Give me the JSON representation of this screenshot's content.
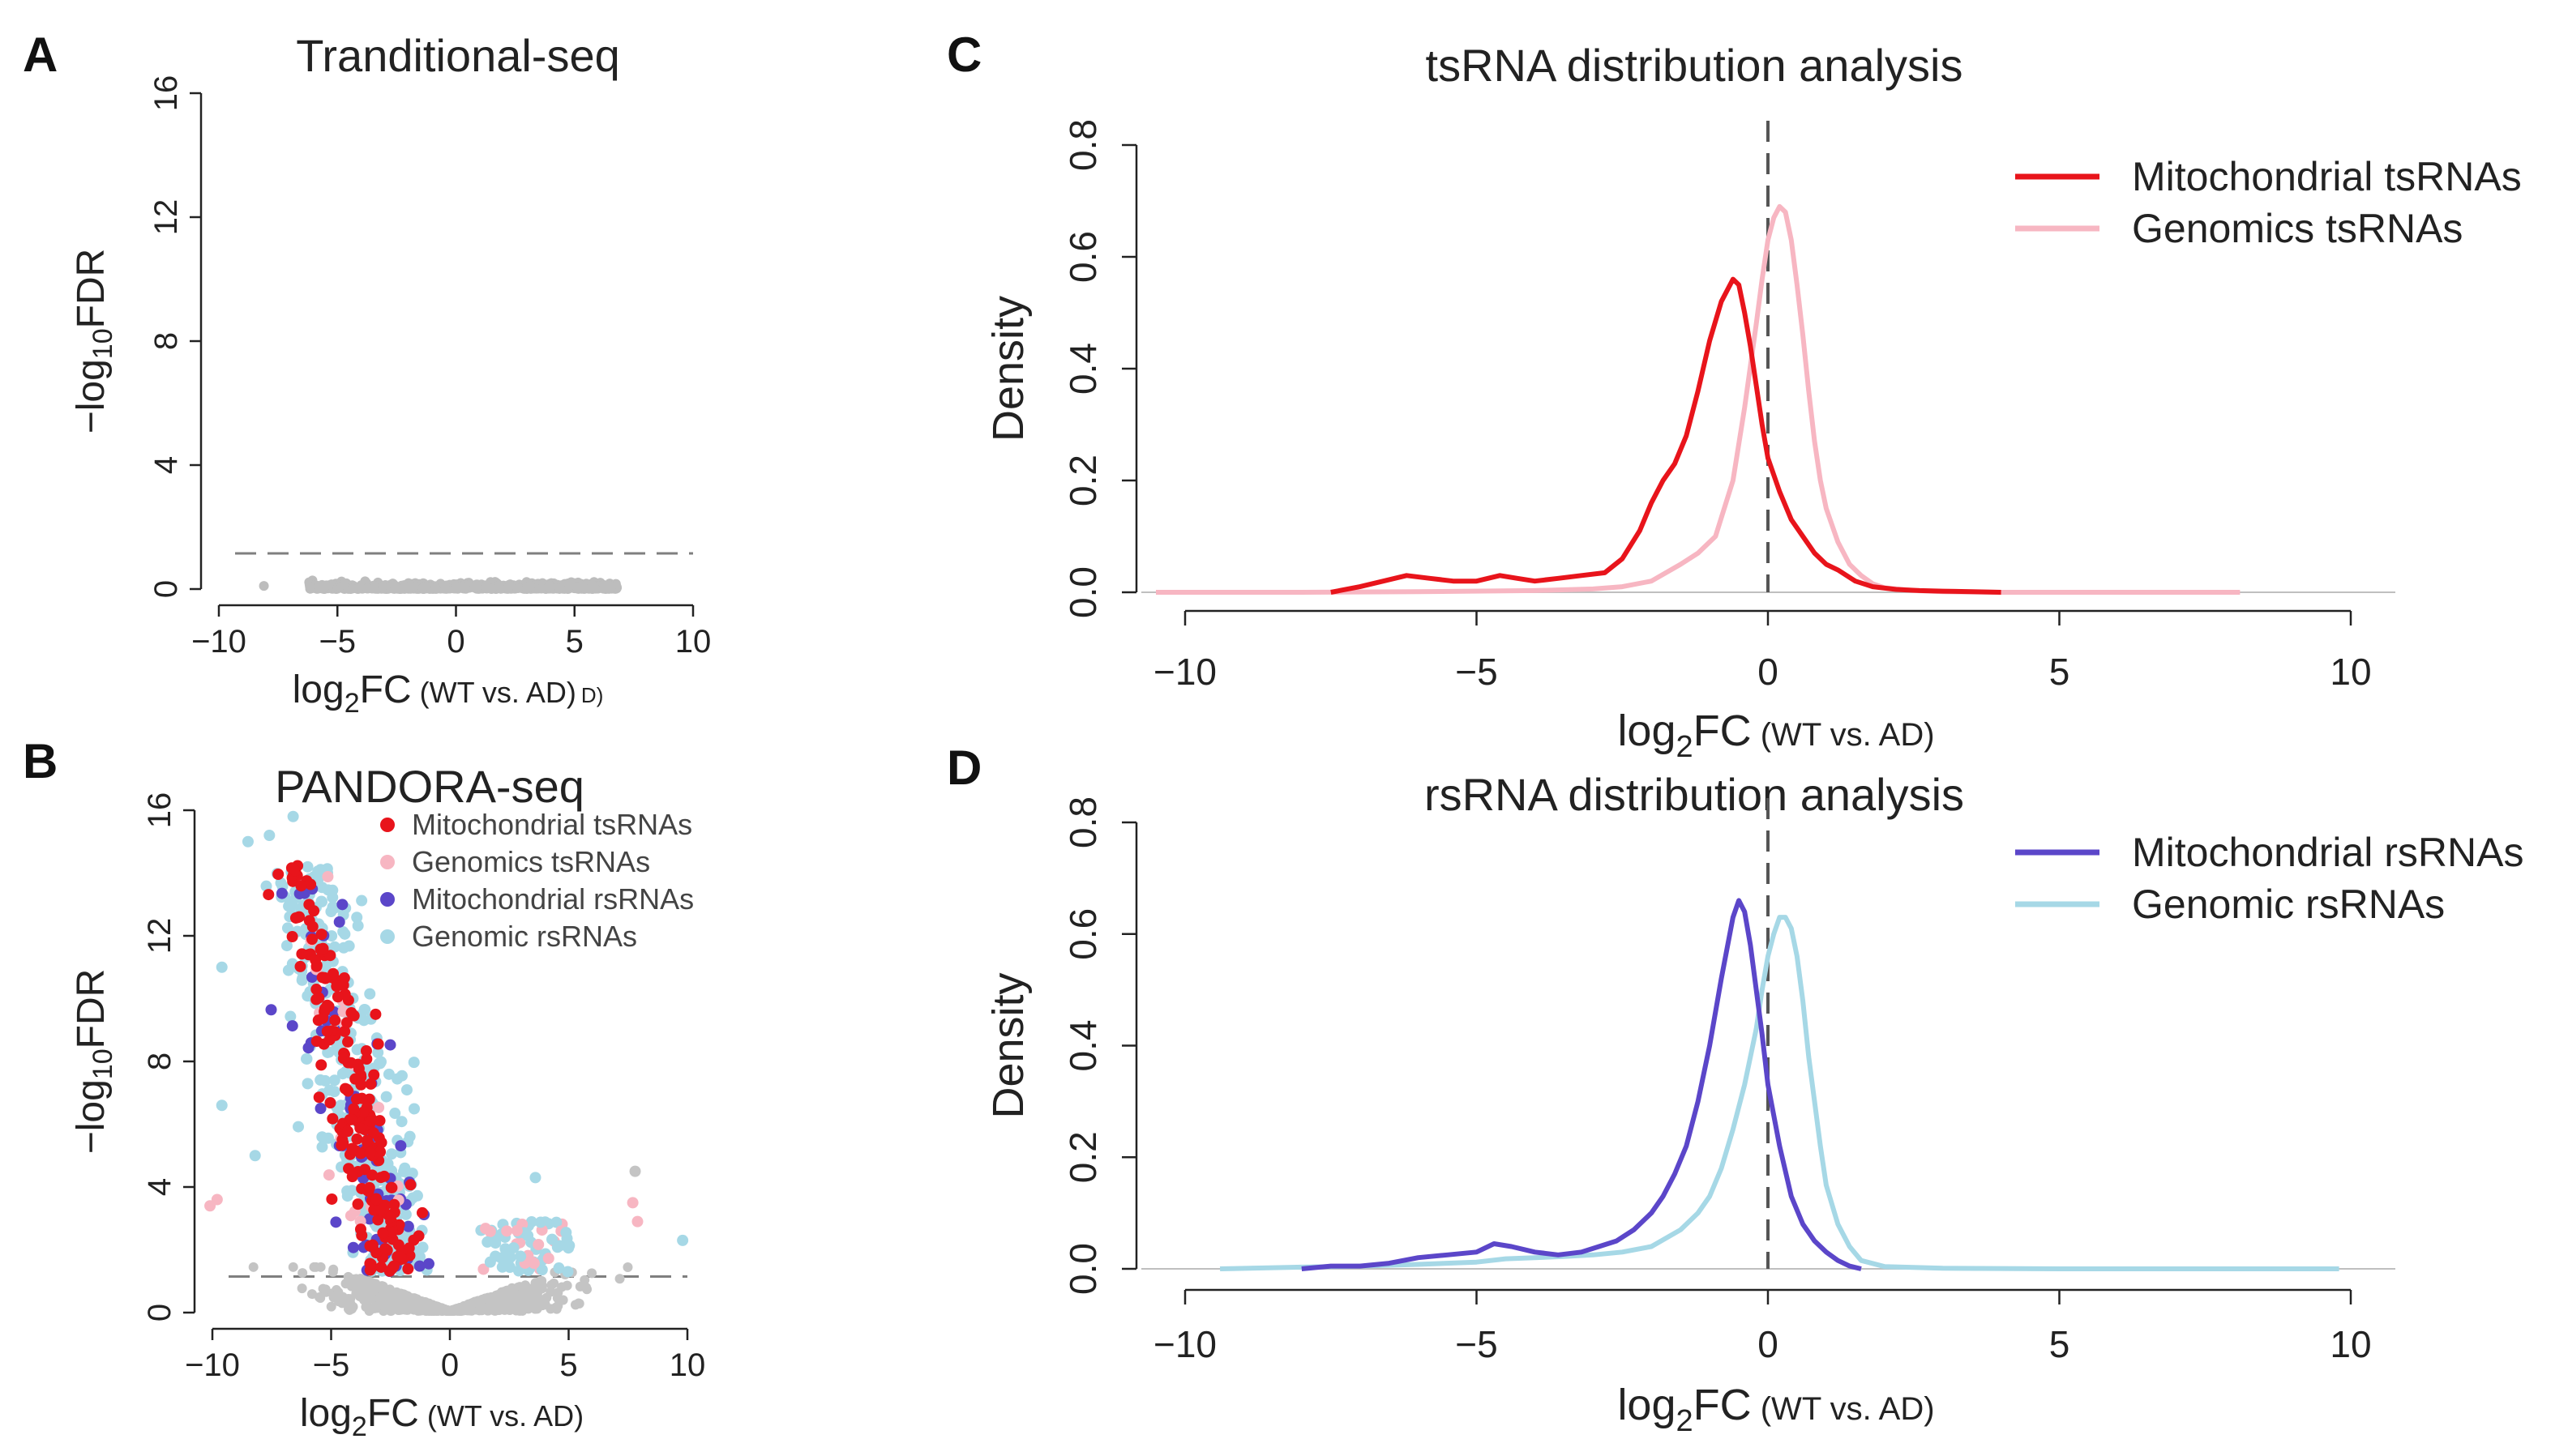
{
  "chart_data": [
    {
      "id": "A",
      "type": "scatter",
      "panel": "A",
      "title": "Tranditional-seq",
      "xlabel_main": "log",
      "xlabel_sub": "2",
      "xlabel_tail": "FC",
      "xlabel_small": "(WT vs. AD)",
      "xlabel_cut": "D)",
      "ylabel_main": "−log",
      "ylabel_sub": "10",
      "ylabel_tail": "FDR",
      "xlim": [
        -10,
        10
      ],
      "ylim": [
        0,
        16
      ],
      "xticks": [
        -10,
        -5,
        0,
        5,
        10
      ],
      "xtick_labels": [
        "−10",
        "−5",
        "0",
        "5",
        "10"
      ],
      "yticks": [
        0,
        4,
        8,
        12,
        16
      ],
      "ytick_labels": [
        "0",
        "4",
        "8",
        "12",
        "16"
      ],
      "threshold": 1.15,
      "point_color": "#bdbdbd",
      "x_range": [
        -6.2,
        6.8
      ],
      "outliers": [
        [
          -8.1,
          0.1
        ]
      ],
      "colors": {
        "points": "#bdbdbd",
        "threshold": "#7f7f7f",
        "axis": "#222222"
      }
    },
    {
      "id": "B",
      "type": "scatter",
      "panel": "B",
      "title": "PANDORA-seq",
      "xlabel_main": "log",
      "xlabel_sub": "2",
      "xlabel_tail": "FC",
      "xlabel_small": "(WT vs. AD)",
      "ylabel_main": "−log",
      "ylabel_sub": "10",
      "ylabel_tail": "FDR",
      "xlim": [
        -10,
        10
      ],
      "ylim": [
        0,
        16
      ],
      "xticks": [
        -10,
        -5,
        0,
        5,
        10
      ],
      "xtick_labels": [
        "−10",
        "−5",
        "0",
        "5",
        "10"
      ],
      "yticks": [
        0,
        4,
        8,
        12,
        16
      ],
      "ytick_labels": [
        "0",
        "4",
        "8",
        "12",
        "16"
      ],
      "threshold": 1.15,
      "legend": [
        {
          "name": "Mitochondrial tsRNAs",
          "color": "#e8141b"
        },
        {
          "name": "Genomics tsRNAs",
          "color": "#f7b6c2"
        },
        {
          "name": "Mitochondrial rsRNAs",
          "color": "#5b46c9"
        },
        {
          "name": "Genomic rsRNAs",
          "color": "#a6d8e6"
        }
      ],
      "nonsig_color": "#c4c4c4",
      "outliers_lightblue": [
        [
          -8.5,
          15.0
        ],
        [
          -7.6,
          15.2
        ],
        [
          -6.6,
          15.8
        ],
        [
          -9.6,
          11.0
        ],
        [
          -9.6,
          6.6
        ],
        [
          3.6,
          4.3
        ],
        [
          9.8,
          2.3
        ],
        [
          -8.2,
          5.0
        ]
      ],
      "outliers_pink": [
        [
          -10.1,
          3.4
        ],
        [
          7.7,
          3.5
        ],
        [
          7.9,
          2.9
        ],
        [
          -9.8,
          3.6
        ]
      ],
      "outliers_grey": [
        [
          7.8,
          4.5
        ]
      ]
    },
    {
      "id": "C",
      "type": "line",
      "panel": "C",
      "title": "tsRNA distribution analysis",
      "xlabel_main": "log",
      "xlabel_sub": "2",
      "xlabel_tail": "FC",
      "xlabel_small": "(WT vs. AD)",
      "ylabel": "Density",
      "xlim": [
        -10,
        10
      ],
      "ylim": [
        0,
        0.8
      ],
      "xticks": [
        -10,
        -5,
        0,
        5,
        10
      ],
      "xtick_labels": [
        "−10",
        "−5",
        "0",
        "5",
        "10"
      ],
      "yticks": [
        0,
        0.2,
        0.4,
        0.6,
        0.8
      ],
      "ytick_labels": [
        "0.0",
        "0.2",
        "0.4",
        "0.6",
        "0.8"
      ],
      "vline": 0,
      "series": [
        {
          "name": "Mitochondrial tsRNAs",
          "color": "#e8141b",
          "x": [
            -7.5,
            -7.0,
            -6.6,
            -6.2,
            -5.8,
            -5.4,
            -5.0,
            -4.6,
            -4.3,
            -4.0,
            -3.6,
            -3.2,
            -2.8,
            -2.5,
            -2.2,
            -2.0,
            -1.8,
            -1.6,
            -1.4,
            -1.2,
            -1.0,
            -0.8,
            -0.6,
            -0.5,
            -0.4,
            -0.3,
            -0.2,
            -0.1,
            0.0,
            0.2,
            0.4,
            0.6,
            0.8,
            1.0,
            1.2,
            1.5,
            1.8,
            2.2,
            2.6,
            3.0,
            3.5,
            4.0
          ],
          "y": [
            0.0,
            0.01,
            0.02,
            0.03,
            0.025,
            0.02,
            0.02,
            0.03,
            0.025,
            0.02,
            0.025,
            0.03,
            0.035,
            0.06,
            0.11,
            0.16,
            0.2,
            0.23,
            0.28,
            0.36,
            0.45,
            0.52,
            0.56,
            0.55,
            0.5,
            0.44,
            0.37,
            0.3,
            0.24,
            0.18,
            0.13,
            0.1,
            0.07,
            0.05,
            0.04,
            0.02,
            0.01,
            0.005,
            0.003,
            0.002,
            0.001,
            0.0
          ]
        },
        {
          "name": "Genomics tsRNAs",
          "color": "#f7b6c2",
          "x": [
            -10.5,
            -8.0,
            -6.0,
            -4.0,
            -3.0,
            -2.5,
            -2.0,
            -1.5,
            -1.2,
            -0.9,
            -0.6,
            -0.4,
            -0.2,
            -0.1,
            0.0,
            0.1,
            0.2,
            0.3,
            0.4,
            0.5,
            0.6,
            0.7,
            0.8,
            0.9,
            1.0,
            1.2,
            1.4,
            1.6,
            1.8,
            2.0,
            2.5,
            3.0,
            4.0,
            6.0,
            8.1
          ],
          "y": [
            0.0,
            0.0,
            0.001,
            0.003,
            0.006,
            0.01,
            0.02,
            0.05,
            0.07,
            0.1,
            0.2,
            0.33,
            0.48,
            0.56,
            0.63,
            0.67,
            0.69,
            0.68,
            0.63,
            0.55,
            0.46,
            0.36,
            0.27,
            0.2,
            0.15,
            0.09,
            0.05,
            0.03,
            0.015,
            0.008,
            0.003,
            0.001,
            0.0,
            0.0,
            0.0
          ]
        }
      ]
    },
    {
      "id": "D",
      "type": "line",
      "panel": "D",
      "title": "rsRNA distribution analysis",
      "xlabel_main": "log",
      "xlabel_sub": "2",
      "xlabel_tail": "FC",
      "xlabel_small": "(WT vs. AD)",
      "ylabel": "Density",
      "xlim": [
        -10,
        10
      ],
      "ylim": [
        0,
        0.8
      ],
      "xticks": [
        -10,
        -5,
        0,
        5,
        10
      ],
      "xtick_labels": [
        "−10",
        "−5",
        "0",
        "5",
        "10"
      ],
      "yticks": [
        0,
        0.2,
        0.4,
        0.6,
        0.8
      ],
      "ytick_labels": [
        "0.0",
        "0.2",
        "0.4",
        "0.6",
        "0.8"
      ],
      "vline": 0,
      "series": [
        {
          "name": "Mitochondrial rsRNAs",
          "color": "#5b46c9",
          "x": [
            -8.0,
            -7.5,
            -7.0,
            -6.5,
            -6.0,
            -5.5,
            -5.0,
            -4.7,
            -4.4,
            -4.0,
            -3.6,
            -3.2,
            -2.9,
            -2.6,
            -2.3,
            -2.0,
            -1.8,
            -1.6,
            -1.4,
            -1.2,
            -1.0,
            -0.8,
            -0.6,
            -0.5,
            -0.4,
            -0.3,
            -0.2,
            -0.1,
            0.0,
            0.2,
            0.4,
            0.6,
            0.8,
            1.0,
            1.2,
            1.4,
            1.6
          ],
          "y": [
            0.0,
            0.005,
            0.005,
            0.01,
            0.02,
            0.025,
            0.03,
            0.045,
            0.04,
            0.03,
            0.025,
            0.03,
            0.04,
            0.05,
            0.07,
            0.1,
            0.13,
            0.17,
            0.22,
            0.3,
            0.4,
            0.52,
            0.63,
            0.66,
            0.64,
            0.58,
            0.5,
            0.42,
            0.33,
            0.22,
            0.13,
            0.08,
            0.05,
            0.03,
            0.015,
            0.005,
            0.0
          ]
        },
        {
          "name": "Genomic rsRNAs",
          "color": "#a6d8e6",
          "x": [
            -9.4,
            -8.0,
            -7.0,
            -6.0,
            -5.0,
            -4.5,
            -4.0,
            -3.5,
            -3.0,
            -2.5,
            -2.0,
            -1.5,
            -1.2,
            -1.0,
            -0.8,
            -0.6,
            -0.4,
            -0.2,
            -0.1,
            0.0,
            0.1,
            0.2,
            0.3,
            0.4,
            0.5,
            0.6,
            0.7,
            0.8,
            0.9,
            1.0,
            1.2,
            1.4,
            1.6,
            2.0,
            3.0,
            5.0,
            9.8
          ],
          "y": [
            0.0,
            0.003,
            0.005,
            0.008,
            0.012,
            0.018,
            0.02,
            0.022,
            0.025,
            0.03,
            0.04,
            0.07,
            0.1,
            0.13,
            0.18,
            0.25,
            0.33,
            0.43,
            0.5,
            0.56,
            0.6,
            0.63,
            0.63,
            0.61,
            0.56,
            0.48,
            0.38,
            0.3,
            0.22,
            0.15,
            0.08,
            0.04,
            0.015,
            0.004,
            0.001,
            0.0,
            0.0
          ]
        }
      ]
    }
  ]
}
